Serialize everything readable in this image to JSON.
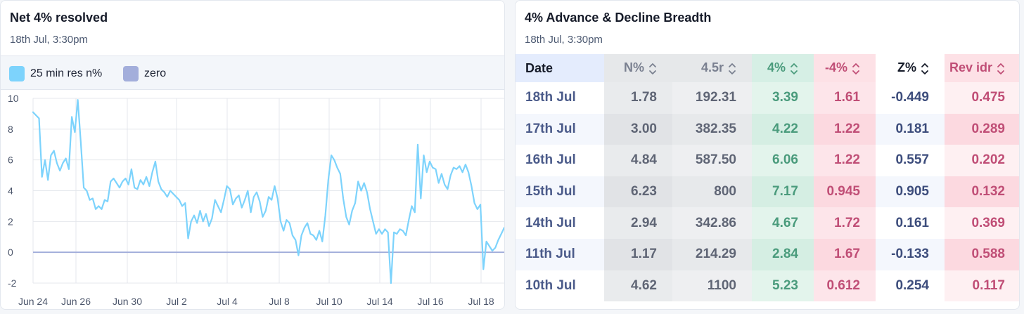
{
  "left_card": {
    "title": "Net 4% resolved",
    "subtitle": "18th Jul, 3:30pm",
    "legend": [
      {
        "label": "25 min res n%",
        "color": "#7dd3fc"
      },
      {
        "label": "zero",
        "color": "#a3aedb"
      }
    ]
  },
  "chart_data": {
    "type": "line",
    "title": "",
    "xlabel": "",
    "ylabel": "",
    "ylim": [
      -2,
      10
    ],
    "yticks": [
      10,
      8,
      6,
      4,
      2,
      0,
      -2
    ],
    "xticks": [
      "Jun 24",
      "Jun 26",
      "Jun 30",
      "Jul 2",
      "Jul 4",
      "Jul 8",
      "Jul 10",
      "Jul 14",
      "Jul 16",
      "Jul 18"
    ],
    "grid": true,
    "legend_position": "top-left",
    "series": [
      {
        "name": "25 min res n%",
        "color": "#7dd3fc",
        "values": [
          9.1,
          8.9,
          8.7,
          4.9,
          6.0,
          4.7,
          6.3,
          6.6,
          5.8,
          5.3,
          5.8,
          6.1,
          5.4,
          8.8,
          7.8,
          9.9,
          7.2,
          4.2,
          4.0,
          3.4,
          3.5,
          2.8,
          3.0,
          2.8,
          3.4,
          3.3,
          4.6,
          4.8,
          4.5,
          4.2,
          4.6,
          4.8,
          4.4,
          5.4,
          4.2,
          4.1,
          4.7,
          4.4,
          4.9,
          4.3,
          5.2,
          5.9,
          4.6,
          4.1,
          3.9,
          3.6,
          4.0,
          3.8,
          3.6,
          3.4,
          3.0,
          3.2,
          0.9,
          2.0,
          2.4,
          1.9,
          2.7,
          2.0,
          2.5,
          1.7,
          2.2,
          3.4,
          3.0,
          2.6,
          3.4,
          4.3,
          4.1,
          3.1,
          3.5,
          3.7,
          2.9,
          3.4,
          4.0,
          2.6,
          3.6,
          3.9,
          3.3,
          2.3,
          2.7,
          3.6,
          3.4,
          4.3,
          3.5,
          2.0,
          1.4,
          2.1,
          1.9,
          1.1,
          0.8,
          -0.2,
          1.1,
          1.6,
          1.9,
          1.2,
          1.1,
          0.8,
          1.4,
          0.7,
          2.4,
          4.7,
          6.3,
          6.0,
          5.5,
          5.1,
          3.5,
          2.3,
          1.8,
          2.7,
          3.2,
          4.6,
          4.0,
          4.5,
          3.9,
          2.8,
          2.0,
          1.2,
          1.5,
          1.2,
          1.5,
          1.3,
          -2.0,
          1.3,
          1.2,
          1.5,
          1.4,
          1.1,
          2.1,
          3.0,
          2.6,
          7.0,
          3.5,
          6.3,
          5.2,
          5.9,
          5.5,
          5.4,
          4.5,
          5.1,
          4.4,
          4.1,
          5.0,
          5.5,
          5.4,
          5.6,
          5.2,
          5.7,
          5.2,
          4.3,
          3.2,
          2.8,
          3.1,
          -1.1,
          0.7,
          0.4,
          0.1,
          0.3,
          0.8,
          1.2,
          1.6
        ]
      },
      {
        "name": "zero",
        "color": "#a3aedb",
        "values": [
          0,
          0
        ]
      }
    ]
  },
  "right_card": {
    "title": "4% Advance & Decline Breadth",
    "subtitle": "18th Jul, 3:30pm",
    "columns": [
      {
        "label": "Date",
        "sortable": false
      },
      {
        "label": "N%",
        "sortable": true
      },
      {
        "label": "4.5r",
        "sortable": true
      },
      {
        "label": "4%",
        "sortable": true
      },
      {
        "label": "-4%",
        "sortable": true
      },
      {
        "label": "Z%",
        "sortable": true
      },
      {
        "label": "Rev idr",
        "sortable": true
      }
    ],
    "rows": [
      [
        "18th Jul",
        "1.78",
        "192.31",
        "3.39",
        "1.61",
        "-0.449",
        "0.475"
      ],
      [
        "17th Jul",
        "3.00",
        "382.35",
        "4.22",
        "1.22",
        "0.181",
        "0.289"
      ],
      [
        "16th Jul",
        "4.84",
        "587.50",
        "6.06",
        "1.22",
        "0.557",
        "0.202"
      ],
      [
        "15th Jul",
        "6.23",
        "800",
        "7.17",
        "0.945",
        "0.905",
        "0.132"
      ],
      [
        "14th Jul",
        "2.94",
        "342.86",
        "4.67",
        "1.72",
        "0.161",
        "0.369"
      ],
      [
        "11th Jul",
        "1.17",
        "214.29",
        "2.84",
        "1.67",
        "-0.133",
        "0.588"
      ],
      [
        "10th Jul",
        "4.62",
        "1100",
        "5.23",
        "0.612",
        "0.254",
        "0.117"
      ]
    ],
    "colors": {
      "advance_green": "#d9f0e7",
      "advance_text": "#4a9b7c",
      "decline_pink": "#fde2e6",
      "decline_text": "#c04e76",
      "neutral_gray": "#e9ebed",
      "date_text": "#4b5b8a",
      "z_text": "#3d4d7c"
    }
  }
}
